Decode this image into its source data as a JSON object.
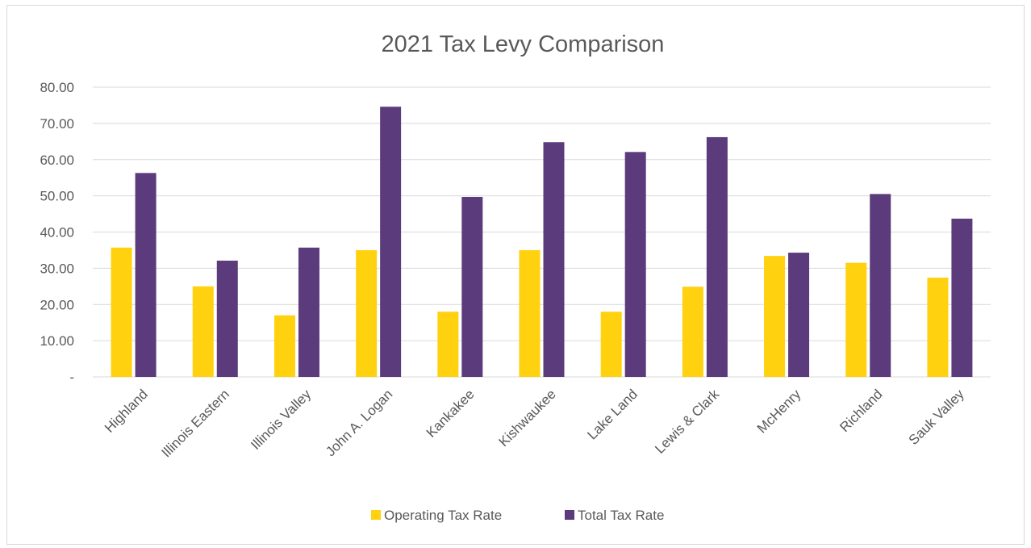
{
  "chart_data": {
    "type": "bar",
    "title": "2021 Tax Levy Comparison",
    "xlabel": "",
    "ylabel": "",
    "categories": [
      "Highland",
      "Illinois Eastern",
      "Illinois Valley",
      "John A. Logan",
      "Kankakee",
      "Kishwaukee",
      "Lake Land",
      "Lewis & Clark",
      "McHenry",
      "Richland",
      "Sauk Valley"
    ],
    "series": [
      {
        "name": "Operating Tax Rate",
        "color": "#FFD10F",
        "values": [
          35.7,
          25.0,
          17.0,
          35.0,
          18.0,
          35.0,
          18.0,
          24.9,
          33.4,
          31.5,
          27.4
        ]
      },
      {
        "name": "Total Tax Rate",
        "color": "#5B3B7C",
        "values": [
          56.3,
          32.1,
          35.7,
          74.6,
          49.7,
          64.8,
          62.1,
          66.2,
          34.3,
          50.5,
          43.7
        ]
      }
    ],
    "ylim": [
      0,
      80
    ],
    "yticks": [
      "-",
      "10.00",
      "20.00",
      "30.00",
      "40.00",
      "50.00",
      "60.00",
      "70.00",
      "80.00"
    ],
    "grid": true,
    "legend": "bottom"
  }
}
